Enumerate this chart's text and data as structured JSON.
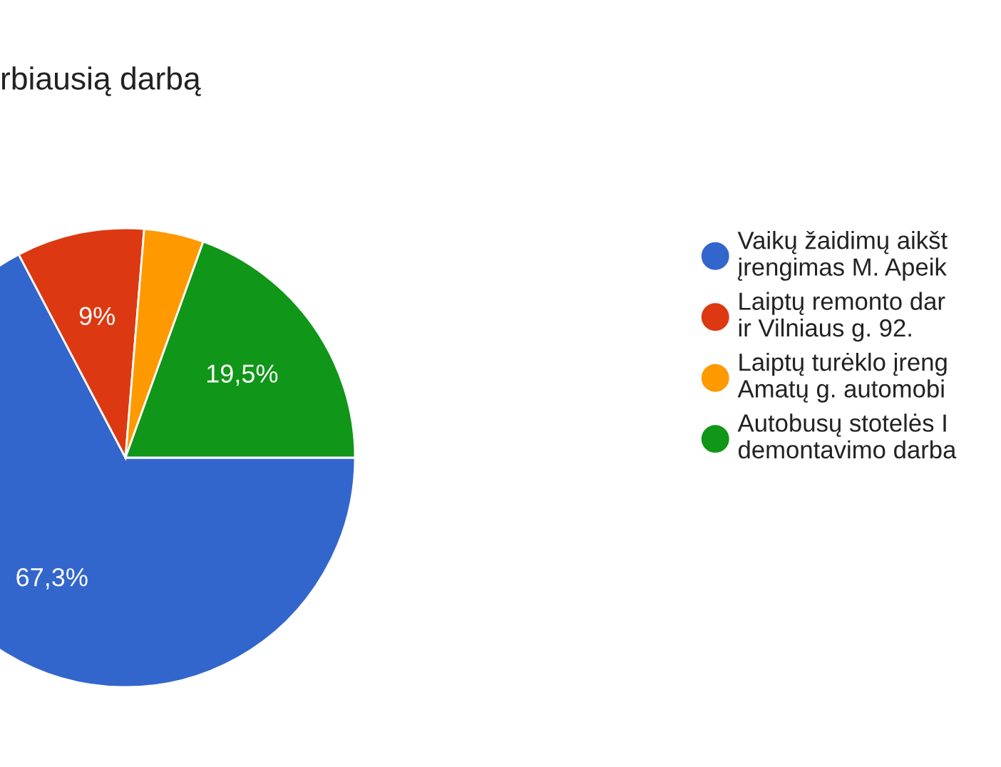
{
  "chart_data": {
    "type": "pie",
    "title": "rbiausią darbą",
    "categories": [
      "Vaikų žaidimų aikšt\nįrengimas M. Apeik",
      "Laiptų remonto dar\nir Vilniaus g. 92.",
      "Laiptų turėklo įreng\nAmatų g. automobi",
      "Autobusų stotelės I\ndemontavimo darba"
    ],
    "values": [
      67.3,
      9,
      4.2,
      19.5
    ],
    "value_labels": [
      "67,3%",
      "9%",
      null,
      "19,5%"
    ],
    "colors": [
      "#3366cc",
      "#dc3912",
      "#ff9900",
      "#109618"
    ],
    "legend": "right"
  }
}
